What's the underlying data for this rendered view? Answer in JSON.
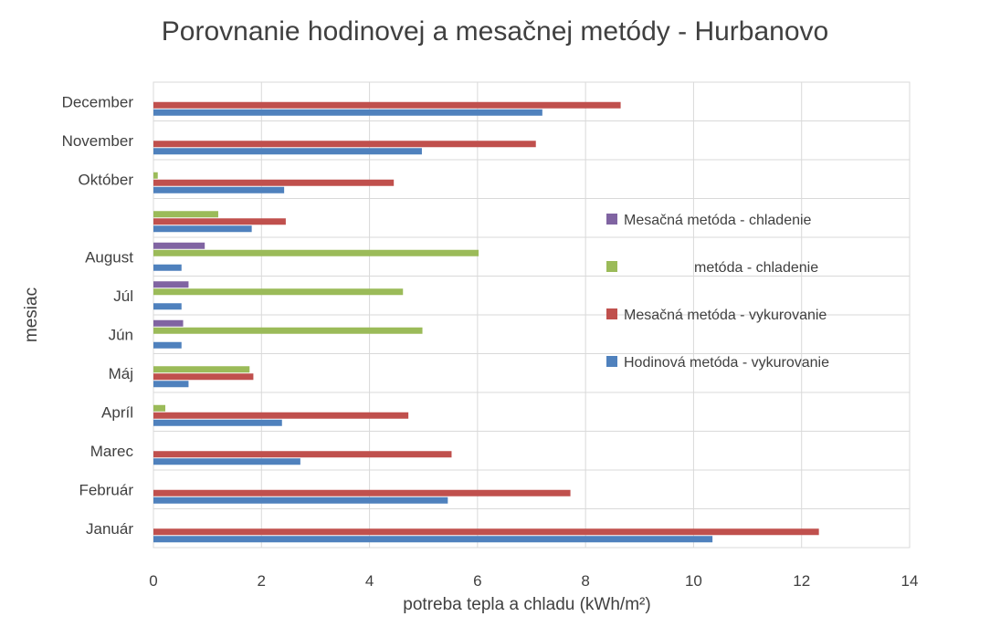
{
  "chart_data": {
    "type": "bar",
    "orientation": "horizontal",
    "title": "Porovnanie hodinovej a mesačnej metódy - Hurbanovo",
    "xlabel": "potreba tepla a chladu (kWh/m²)",
    "ylabel": "mesiac",
    "xlim": [
      0,
      14
    ],
    "xticks": [
      0,
      2,
      4,
      6,
      8,
      10,
      12,
      14
    ],
    "grid": true,
    "legend_position": "right",
    "categories": [
      "Január",
      "Február",
      "Marec",
      "Apríl",
      "Máj",
      "Jún",
      "Júl",
      "August",
      "",
      "Október",
      "November",
      "December"
    ],
    "series": [
      {
        "name": "Hodinová metóda - vykurovanie",
        "color": "#4f81bd",
        "values": [
          10.35,
          5.45,
          2.72,
          2.38,
          0.65,
          0.52,
          0.52,
          0.52,
          1.82,
          2.42,
          4.97,
          7.2
        ]
      },
      {
        "name": "Mesačná metóda - vykurovanie",
        "color": "#c0504d",
        "values": [
          12.32,
          7.72,
          5.52,
          4.72,
          1.85,
          0,
          0,
          0,
          2.45,
          4.45,
          7.08,
          8.65
        ]
      },
      {
        "name": "metóda - chladenie",
        "color": "#9bbb59",
        "values": [
          0,
          0,
          0,
          0.22,
          1.78,
          4.98,
          4.62,
          6.02,
          1.2,
          0.08,
          0,
          0
        ]
      },
      {
        "name": "Mesačná metóda - chladenie",
        "color": "#8064a2",
        "values": [
          0,
          0,
          0,
          0,
          0,
          0.55,
          0.65,
          0.95,
          0,
          0,
          0,
          0
        ]
      }
    ],
    "legend_order": [
      3,
      2,
      1,
      0
    ]
  }
}
